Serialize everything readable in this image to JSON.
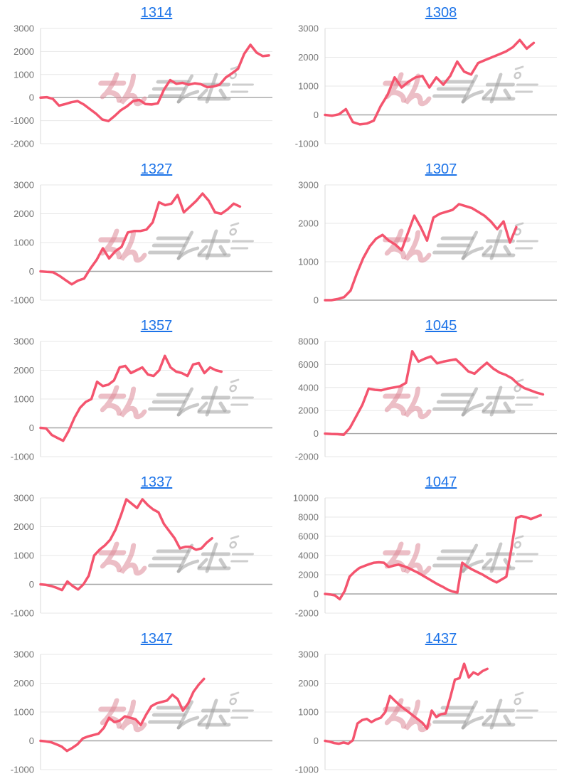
{
  "page": {
    "background": "#ffffff",
    "description_labels": []
  },
  "style": {
    "line_color": "#f4546e",
    "title_color": "#1c73e8",
    "axis_label_color": "#757575",
    "gridline_color": "#e7e7e7",
    "zero_line_color": "#a6a6a6",
    "axis_line_color": "#dadada",
    "watermark_pink": "#dd8997",
    "watermark_gray": "#9e9e9e"
  },
  "watermark": {
    "text": "みんレポ",
    "pink_part": "みん",
    "gray_part": "レポ"
  },
  "chart_data": [
    {
      "type": "line",
      "title": "1314",
      "ylim": [
        -2000,
        3000
      ],
      "yticks": [
        3000,
        2000,
        1000,
        0,
        -1000,
        -2000
      ],
      "x_span": 0.985,
      "grid": true,
      "legend": "none",
      "values": [
        0,
        20,
        -60,
        -350,
        -280,
        -200,
        -150,
        -300,
        -500,
        -700,
        -950,
        -1020,
        -800,
        -550,
        -380,
        -150,
        -100,
        -280,
        -300,
        -250,
        350,
        760,
        600,
        640,
        560,
        620,
        580,
        450,
        480,
        560,
        870,
        1050,
        1250,
        1900,
        2290,
        1950,
        1800,
        1830
      ]
    },
    {
      "type": "line",
      "title": "1308",
      "ylim": [
        -1000,
        3000
      ],
      "yticks": [
        3000,
        2000,
        1000,
        0,
        -1000
      ],
      "x_span": 0.9,
      "grid": true,
      "legend": "none",
      "values": [
        0,
        -30,
        20,
        200,
        -250,
        -330,
        -300,
        -200,
        300,
        700,
        1300,
        950,
        1150,
        1300,
        1350,
        950,
        1300,
        1050,
        1350,
        1850,
        1500,
        1400,
        1800,
        1900,
        2000,
        2100,
        2200,
        2350,
        2600,
        2300,
        2500
      ]
    },
    {
      "type": "line",
      "title": "1327",
      "ylim": [
        -1000,
        3000
      ],
      "yticks": [
        3000,
        2000,
        1000,
        0,
        -1000
      ],
      "x_span": 0.86,
      "grid": true,
      "legend": "none",
      "values": [
        0,
        -20,
        -30,
        -150,
        -300,
        -450,
        -320,
        -250,
        100,
        400,
        800,
        450,
        700,
        850,
        1350,
        1400,
        1400,
        1450,
        1700,
        2400,
        2300,
        2350,
        2650,
        2050,
        2250,
        2450,
        2700,
        2450,
        2050,
        2000,
        2150,
        2350,
        2250
      ]
    },
    {
      "type": "line",
      "title": "1307",
      "ylim": [
        0,
        3000
      ],
      "yticks": [
        3000,
        2000,
        1000,
        0
      ],
      "x_span": 0.825,
      "grid": true,
      "legend": "none",
      "values": [
        0,
        0,
        30,
        80,
        250,
        700,
        1100,
        1400,
        1600,
        1700,
        1550,
        1450,
        1300,
        1750,
        2200,
        1900,
        1550,
        2150,
        2250,
        2300,
        2350,
        2500,
        2450,
        2400,
        2300,
        2200,
        2050,
        1850,
        2050,
        1500,
        1900
      ]
    },
    {
      "type": "line",
      "title": "1357",
      "ylim": [
        -1000,
        3000
      ],
      "yticks": [
        3000,
        2000,
        1000,
        0,
        -1000
      ],
      "x_span": 0.78,
      "grid": true,
      "legend": "none",
      "values": [
        0,
        -20,
        -250,
        -350,
        -450,
        -100,
        350,
        700,
        900,
        1000,
        1600,
        1450,
        1500,
        1650,
        2100,
        2150,
        1900,
        2000,
        2100,
        1850,
        1800,
        2000,
        2500,
        2100,
        1950,
        1900,
        1800,
        2200,
        2250,
        1900,
        2100,
        2000,
        1950
      ]
    },
    {
      "type": "line",
      "title": "1045",
      "ylim": [
        -2000,
        8000
      ],
      "yticks": [
        8000,
        6000,
        4000,
        2000,
        0,
        -2000
      ],
      "x_span": 0.94,
      "grid": true,
      "legend": "none",
      "values": [
        0,
        -30,
        -50,
        -100,
        500,
        1500,
        2500,
        3900,
        3800,
        3750,
        3900,
        4000,
        4100,
        4400,
        7150,
        6250,
        6500,
        6700,
        6100,
        6250,
        6350,
        6450,
        5950,
        5400,
        5200,
        5700,
        6150,
        5650,
        5300,
        5100,
        4800,
        4300,
        3950,
        3750,
        3550,
        3400
      ]
    },
    {
      "type": "line",
      "title": "1337",
      "ylim": [
        -1000,
        3000
      ],
      "yticks": [
        3000,
        2000,
        1000,
        0,
        -1000
      ],
      "x_span": 0.74,
      "grid": true,
      "legend": "none",
      "values": [
        0,
        -20,
        -60,
        -120,
        -200,
        100,
        -60,
        -180,
        0,
        300,
        1000,
        1200,
        1350,
        1550,
        1900,
        2400,
        2950,
        2800,
        2650,
        2950,
        2750,
        2600,
        2500,
        2100,
        1850,
        1600,
        1250,
        1300,
        1300,
        1200,
        1250,
        1450,
        1600
      ]
    },
    {
      "type": "line",
      "title": "1047",
      "ylim": [
        -2000,
        10000
      ],
      "yticks": [
        10000,
        8000,
        6000,
        4000,
        2000,
        0,
        -2000
      ],
      "x_span": 0.93,
      "grid": true,
      "legend": "none",
      "values": [
        0,
        -50,
        -150,
        -550,
        300,
        1800,
        2300,
        2700,
        2900,
        3100,
        3250,
        3300,
        3250,
        2800,
        2950,
        3050,
        2900,
        2700,
        2450,
        2200,
        1900,
        1600,
        1300,
        1000,
        750,
        450,
        250,
        150,
        3250,
        2850,
        2550,
        2300,
        2050,
        1750,
        1450,
        1200,
        1500,
        1800,
        4600,
        7900,
        8100,
        8000,
        7800,
        8000,
        8200
      ]
    },
    {
      "type": "line",
      "title": "1347",
      "ylim": [
        -1000,
        3000
      ],
      "yticks": [
        3000,
        2000,
        1000,
        0,
        -1000
      ],
      "x_span": 0.705,
      "grid": true,
      "legend": "none",
      "values": [
        0,
        -20,
        -50,
        -120,
        -200,
        -350,
        -250,
        -120,
        80,
        150,
        200,
        250,
        450,
        800,
        650,
        700,
        850,
        800,
        750,
        550,
        900,
        1200,
        1300,
        1350,
        1400,
        1600,
        1450,
        1050,
        1300,
        1700,
        1950,
        2150
      ]
    },
    {
      "type": "line",
      "title": "1437",
      "ylim": [
        -1000,
        3000
      ],
      "yticks": [
        3000,
        2000,
        1000,
        0,
        -1000
      ],
      "x_span": 0.7,
      "grid": true,
      "legend": "none",
      "values": [
        0,
        -30,
        -80,
        -100,
        -60,
        -100,
        20,
        600,
        720,
        760,
        650,
        740,
        800,
        1000,
        1560,
        1400,
        1250,
        1120,
        1000,
        875,
        750,
        625,
        425,
        1050,
        825,
        925,
        950,
        1500,
        2125,
        2175,
        2675,
        2200,
        2375,
        2300,
        2425,
        2500
      ]
    }
  ]
}
